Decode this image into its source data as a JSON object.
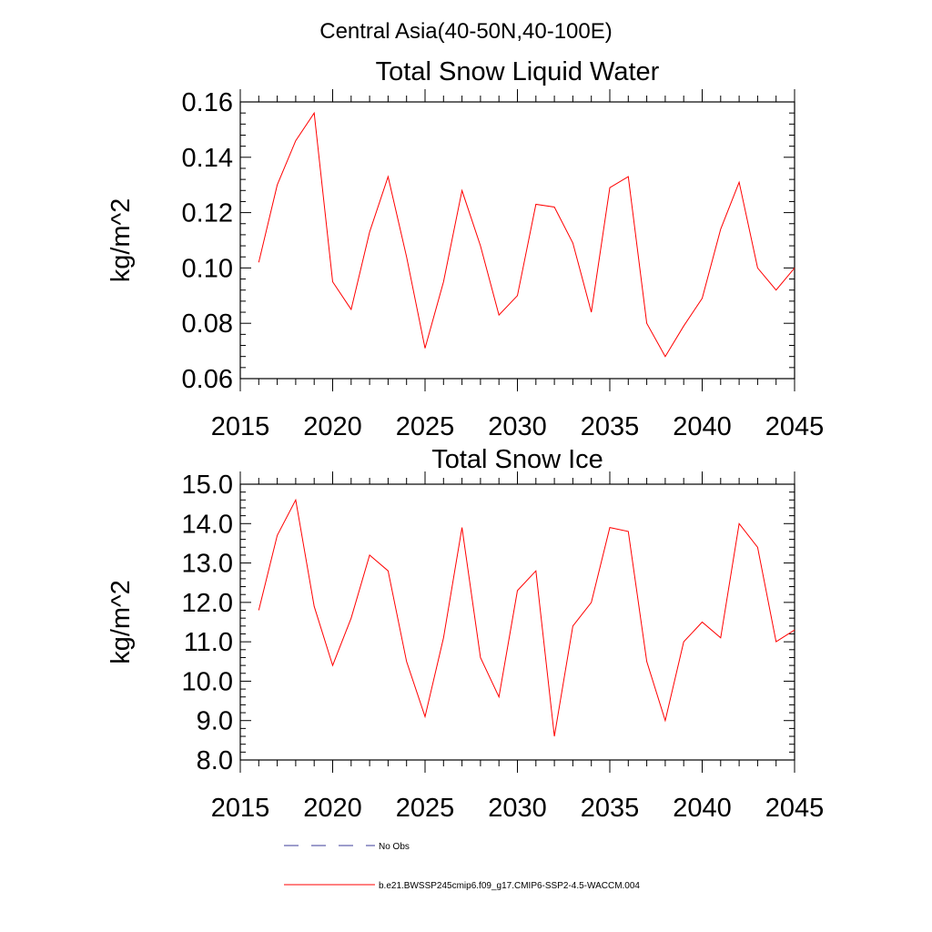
{
  "figure": {
    "suptitle": "Central Asia(40-50N,40-100E)"
  },
  "legend": {
    "entries": [
      {
        "label": "No Obs",
        "color": "#3b3b9a",
        "style": "dashed"
      },
      {
        "label": "b.e21.BWSSP245cmip6.f09_g17.CMIP6-SSP2-4.5-WACCM.004",
        "color": "#ff0000",
        "style": "solid"
      }
    ]
  },
  "chart_data": [
    {
      "type": "line",
      "title": "Total Snow Liquid Water",
      "xlabel": "",
      "ylabel": "kg/m^2",
      "xlim": [
        2015,
        2045
      ],
      "ylim": [
        0.06,
        0.16
      ],
      "x_ticks": [
        "2015",
        "2020",
        "2025",
        "2030",
        "2035",
        "2040",
        "2045"
      ],
      "y_ticks": [
        "0.06",
        "0.08",
        "0.10",
        "0.12",
        "0.14",
        "0.16"
      ],
      "grid": false,
      "series": [
        {
          "name": "b.e21.BWSSP245cmip6.f09_g17.CMIP6-SSP2-4.5-WACCM.004",
          "color": "#ff0000",
          "x": [
            2016,
            2017,
            2018,
            2019,
            2020,
            2021,
            2022,
            2023,
            2024,
            2025,
            2026,
            2027,
            2028,
            2029,
            2030,
            2031,
            2032,
            2033,
            2034,
            2035,
            2036,
            2037,
            2038,
            2039,
            2040,
            2041,
            2042,
            2043,
            2044,
            2045
          ],
          "y": [
            0.102,
            0.13,
            0.146,
            0.156,
            0.095,
            0.085,
            0.113,
            0.133,
            0.104,
            0.071,
            0.095,
            0.128,
            0.108,
            0.083,
            0.09,
            0.123,
            0.122,
            0.109,
            0.084,
            0.129,
            0.133,
            0.08,
            0.068,
            0.079,
            0.089,
            0.114,
            0.131,
            0.1,
            0.092,
            0.1
          ]
        }
      ]
    },
    {
      "type": "line",
      "title": "Total Snow Ice",
      "xlabel": "",
      "ylabel": "kg/m^2",
      "xlim": [
        2015,
        2045
      ],
      "ylim": [
        8.0,
        15.0
      ],
      "x_ticks": [
        "2015",
        "2020",
        "2025",
        "2030",
        "2035",
        "2040",
        "2045"
      ],
      "y_ticks": [
        "8.0",
        "9.0",
        "10.0",
        "11.0",
        "12.0",
        "13.0",
        "14.0",
        "15.0"
      ],
      "grid": false,
      "series": [
        {
          "name": "b.e21.BWSSP245cmip6.f09_g17.CMIP6-SSP2-4.5-WACCM.004",
          "color": "#ff0000",
          "x": [
            2016,
            2017,
            2018,
            2019,
            2020,
            2021,
            2022,
            2023,
            2024,
            2025,
            2026,
            2027,
            2028,
            2029,
            2030,
            2031,
            2032,
            2033,
            2034,
            2035,
            2036,
            2037,
            2038,
            2039,
            2040,
            2041,
            2042,
            2043,
            2044,
            2045
          ],
          "y": [
            11.8,
            13.7,
            14.6,
            11.9,
            10.4,
            11.6,
            13.2,
            12.8,
            10.5,
            9.1,
            11.1,
            13.9,
            10.6,
            9.6,
            12.3,
            12.8,
            8.6,
            11.4,
            12.0,
            13.9,
            13.8,
            10.5,
            9.0,
            11.0,
            11.5,
            11.1,
            14.0,
            13.4,
            11.0,
            11.3
          ]
        }
      ]
    }
  ]
}
